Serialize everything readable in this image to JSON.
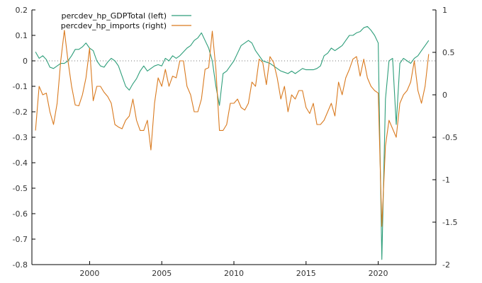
{
  "chart_data": {
    "type": "line",
    "title": "",
    "xlabel": "",
    "ylabel": "",
    "y2label": "",
    "xlim": [
      1996.0,
      2024.0
    ],
    "ylim": [
      -0.8,
      0.2
    ],
    "y2lim": [
      -2.0,
      1.0
    ],
    "x_ticks": [
      2000,
      2005,
      2010,
      2015,
      2020
    ],
    "x_tick_labels": [
      "2000",
      "2005",
      "2010",
      "2015",
      "2020"
    ],
    "y_ticks": [
      0.2,
      0.1,
      0,
      -0.1,
      -0.2,
      -0.3,
      -0.4,
      -0.5,
      -0.6,
      -0.7,
      -0.8
    ],
    "y_tick_labels": [
      "0.2",
      "0.1",
      "0",
      "-0.1",
      "-0.2",
      "-0.3",
      "-0.4",
      "-0.5",
      "-0.6",
      "-0.7",
      "-0.8"
    ],
    "y2_ticks": [
      1,
      0.5,
      0,
      -0.5,
      -1,
      -1.5,
      -2
    ],
    "y2_tick_labels": [
      "1",
      "0.5",
      "0",
      "-0.5",
      "-1",
      "-1.5",
      "-2"
    ],
    "grid": false,
    "zero_line": "dotted",
    "legend_position": "top-left",
    "series": [
      {
        "name": "percdev_hp_GDPTotal (left)",
        "axis": "left",
        "color": "#2e9e7a",
        "points": [
          [
            1996.25,
            0.035
          ],
          [
            1996.5,
            0.01
          ],
          [
            1996.75,
            0.02
          ],
          [
            1997.0,
            0.005
          ],
          [
            1997.25,
            -0.025
          ],
          [
            1997.5,
            -0.03
          ],
          [
            1997.75,
            -0.02
          ],
          [
            1998.0,
            -0.01
          ],
          [
            1998.25,
            -0.01
          ],
          [
            1998.5,
            0.0
          ],
          [
            1998.75,
            0.02
          ],
          [
            1999.0,
            0.045
          ],
          [
            1999.25,
            0.045
          ],
          [
            1999.5,
            0.055
          ],
          [
            1999.75,
            0.07
          ],
          [
            2000.0,
            0.05
          ],
          [
            2000.25,
            0.04
          ],
          [
            2000.5,
            0.0
          ],
          [
            2000.75,
            -0.02
          ],
          [
            2001.0,
            -0.025
          ],
          [
            2001.25,
            -0.005
          ],
          [
            2001.5,
            0.01
          ],
          [
            2001.75,
            0.0
          ],
          [
            2002.0,
            -0.02
          ],
          [
            2002.25,
            -0.06
          ],
          [
            2002.5,
            -0.1
          ],
          [
            2002.75,
            -0.115
          ],
          [
            2003.0,
            -0.09
          ],
          [
            2003.25,
            -0.07
          ],
          [
            2003.5,
            -0.04
          ],
          [
            2003.75,
            -0.02
          ],
          [
            2004.0,
            -0.04
          ],
          [
            2004.25,
            -0.03
          ],
          [
            2004.5,
            -0.02
          ],
          [
            2004.75,
            -0.015
          ],
          [
            2005.0,
            -0.02
          ],
          [
            2005.25,
            0.01
          ],
          [
            2005.5,
            0.0
          ],
          [
            2005.75,
            0.02
          ],
          [
            2006.0,
            0.01
          ],
          [
            2006.25,
            0.02
          ],
          [
            2006.5,
            0.035
          ],
          [
            2006.75,
            0.05
          ],
          [
            2007.0,
            0.06
          ],
          [
            2007.25,
            0.08
          ],
          [
            2007.5,
            0.09
          ],
          [
            2007.75,
            0.11
          ],
          [
            2008.0,
            0.08
          ],
          [
            2008.25,
            0.05
          ],
          [
            2008.5,
            0.0
          ],
          [
            2008.75,
            -0.1
          ],
          [
            2009.0,
            -0.175
          ],
          [
            2009.25,
            -0.05
          ],
          [
            2009.5,
            -0.04
          ],
          [
            2009.75,
            -0.02
          ],
          [
            2010.0,
            0.0
          ],
          [
            2010.25,
            0.03
          ],
          [
            2010.5,
            0.06
          ],
          [
            2010.75,
            0.07
          ],
          [
            2011.0,
            0.08
          ],
          [
            2011.25,
            0.07
          ],
          [
            2011.5,
            0.04
          ],
          [
            2011.75,
            0.02
          ],
          [
            2012.0,
            0.0
          ],
          [
            2012.25,
            -0.005
          ],
          [
            2012.5,
            -0.01
          ],
          [
            2012.75,
            -0.02
          ],
          [
            2013.0,
            -0.03
          ],
          [
            2013.25,
            -0.04
          ],
          [
            2013.5,
            -0.045
          ],
          [
            2013.75,
            -0.05
          ],
          [
            2014.0,
            -0.04
          ],
          [
            2014.25,
            -0.05
          ],
          [
            2014.5,
            -0.04
          ],
          [
            2014.75,
            -0.03
          ],
          [
            2015.0,
            -0.035
          ],
          [
            2015.25,
            -0.035
          ],
          [
            2015.5,
            -0.035
          ],
          [
            2015.75,
            -0.03
          ],
          [
            2016.0,
            -0.02
          ],
          [
            2016.25,
            0.02
          ],
          [
            2016.5,
            0.03
          ],
          [
            2016.75,
            0.05
          ],
          [
            2017.0,
            0.04
          ],
          [
            2017.25,
            0.05
          ],
          [
            2017.5,
            0.06
          ],
          [
            2017.75,
            0.08
          ],
          [
            2018.0,
            0.1
          ],
          [
            2018.25,
            0.1
          ],
          [
            2018.5,
            0.11
          ],
          [
            2018.75,
            0.115
          ],
          [
            2019.0,
            0.13
          ],
          [
            2019.25,
            0.135
          ],
          [
            2019.5,
            0.12
          ],
          [
            2019.75,
            0.1
          ],
          [
            2020.0,
            0.07
          ],
          [
            2020.25,
            -0.78
          ],
          [
            2020.5,
            -0.15
          ],
          [
            2020.75,
            0.0
          ],
          [
            2021.0,
            0.01
          ],
          [
            2021.25,
            -0.25
          ],
          [
            2021.5,
            -0.01
          ],
          [
            2021.75,
            0.01
          ],
          [
            2022.0,
            0.0
          ],
          [
            2022.25,
            -0.01
          ],
          [
            2022.5,
            0.01
          ],
          [
            2022.75,
            0.02
          ],
          [
            2023.0,
            0.04
          ],
          [
            2023.25,
            0.06
          ],
          [
            2023.5,
            0.08
          ]
        ]
      },
      {
        "name": "percdev_hp_imports (right)",
        "axis": "right",
        "color": "#d97a1f",
        "points": [
          [
            1996.25,
            -0.42
          ],
          [
            1996.5,
            0.1
          ],
          [
            1996.75,
            0.0
          ],
          [
            1997.0,
            0.02
          ],
          [
            1997.25,
            -0.2
          ],
          [
            1997.5,
            -0.35
          ],
          [
            1997.75,
            -0.1
          ],
          [
            1998.0,
            0.4
          ],
          [
            1998.25,
            0.76
          ],
          [
            1998.5,
            0.4
          ],
          [
            1998.75,
            0.1
          ],
          [
            1999.0,
            -0.12
          ],
          [
            1999.25,
            -0.13
          ],
          [
            1999.5,
            0.0
          ],
          [
            1999.75,
            0.2
          ],
          [
            2000.0,
            0.55
          ],
          [
            2000.25,
            -0.07
          ],
          [
            2000.5,
            0.1
          ],
          [
            2000.75,
            0.1
          ],
          [
            2001.0,
            0.03
          ],
          [
            2001.25,
            -0.02
          ],
          [
            2001.5,
            -0.1
          ],
          [
            2001.75,
            -0.35
          ],
          [
            2002.0,
            -0.38
          ],
          [
            2002.25,
            -0.4
          ],
          [
            2002.5,
            -0.3
          ],
          [
            2002.75,
            -0.25
          ],
          [
            2003.0,
            -0.05
          ],
          [
            2003.25,
            -0.3
          ],
          [
            2003.5,
            -0.42
          ],
          [
            2003.75,
            -0.42
          ],
          [
            2004.0,
            -0.3
          ],
          [
            2004.25,
            -0.65
          ],
          [
            2004.5,
            -0.1
          ],
          [
            2004.75,
            0.2
          ],
          [
            2005.0,
            0.1
          ],
          [
            2005.25,
            0.3
          ],
          [
            2005.5,
            0.1
          ],
          [
            2005.75,
            0.22
          ],
          [
            2006.0,
            0.2
          ],
          [
            2006.25,
            0.4
          ],
          [
            2006.5,
            0.4
          ],
          [
            2006.75,
            0.1
          ],
          [
            2007.0,
            0.0
          ],
          [
            2007.25,
            -0.2
          ],
          [
            2007.5,
            -0.2
          ],
          [
            2007.75,
            -0.05
          ],
          [
            2008.0,
            0.3
          ],
          [
            2008.25,
            0.32
          ],
          [
            2008.5,
            0.75
          ],
          [
            2008.75,
            0.3
          ],
          [
            2009.0,
            -0.42
          ],
          [
            2009.25,
            -0.42
          ],
          [
            2009.5,
            -0.35
          ],
          [
            2009.75,
            -0.1
          ],
          [
            2010.0,
            -0.1
          ],
          [
            2010.25,
            -0.05
          ],
          [
            2010.5,
            -0.15
          ],
          [
            2010.75,
            -0.18
          ],
          [
            2011.0,
            -0.1
          ],
          [
            2011.25,
            0.15
          ],
          [
            2011.5,
            0.1
          ],
          [
            2011.75,
            0.42
          ],
          [
            2012.0,
            0.38
          ],
          [
            2012.25,
            0.12
          ],
          [
            2012.5,
            0.45
          ],
          [
            2012.75,
            0.38
          ],
          [
            2013.0,
            0.2
          ],
          [
            2013.25,
            -0.05
          ],
          [
            2013.5,
            0.1
          ],
          [
            2013.75,
            -0.2
          ],
          [
            2014.0,
            0.0
          ],
          [
            2014.25,
            -0.05
          ],
          [
            2014.5,
            0.05
          ],
          [
            2014.75,
            0.05
          ],
          [
            2015.0,
            -0.15
          ],
          [
            2015.25,
            -0.22
          ],
          [
            2015.5,
            -0.1
          ],
          [
            2015.75,
            -0.35
          ],
          [
            2016.0,
            -0.35
          ],
          [
            2016.25,
            -0.3
          ],
          [
            2016.5,
            -0.2
          ],
          [
            2016.75,
            -0.1
          ],
          [
            2017.0,
            -0.25
          ],
          [
            2017.25,
            0.15
          ],
          [
            2017.5,
            0.0
          ],
          [
            2017.75,
            0.2
          ],
          [
            2018.0,
            0.3
          ],
          [
            2018.25,
            0.42
          ],
          [
            2018.5,
            0.45
          ],
          [
            2018.75,
            0.22
          ],
          [
            2019.0,
            0.42
          ],
          [
            2019.25,
            0.2
          ],
          [
            2019.5,
            0.1
          ],
          [
            2019.75,
            0.05
          ],
          [
            2020.0,
            0.02
          ],
          [
            2020.25,
            -1.55
          ],
          [
            2020.5,
            -0.6
          ],
          [
            2020.75,
            -0.3
          ],
          [
            2021.0,
            -0.4
          ],
          [
            2021.25,
            -0.5
          ],
          [
            2021.5,
            -0.1
          ],
          [
            2021.75,
            0.0
          ],
          [
            2022.0,
            0.05
          ],
          [
            2022.25,
            0.15
          ],
          [
            2022.5,
            0.4
          ],
          [
            2022.75,
            0.05
          ],
          [
            2023.0,
            -0.1
          ],
          [
            2023.25,
            0.1
          ],
          [
            2023.5,
            0.48
          ]
        ]
      }
    ]
  }
}
